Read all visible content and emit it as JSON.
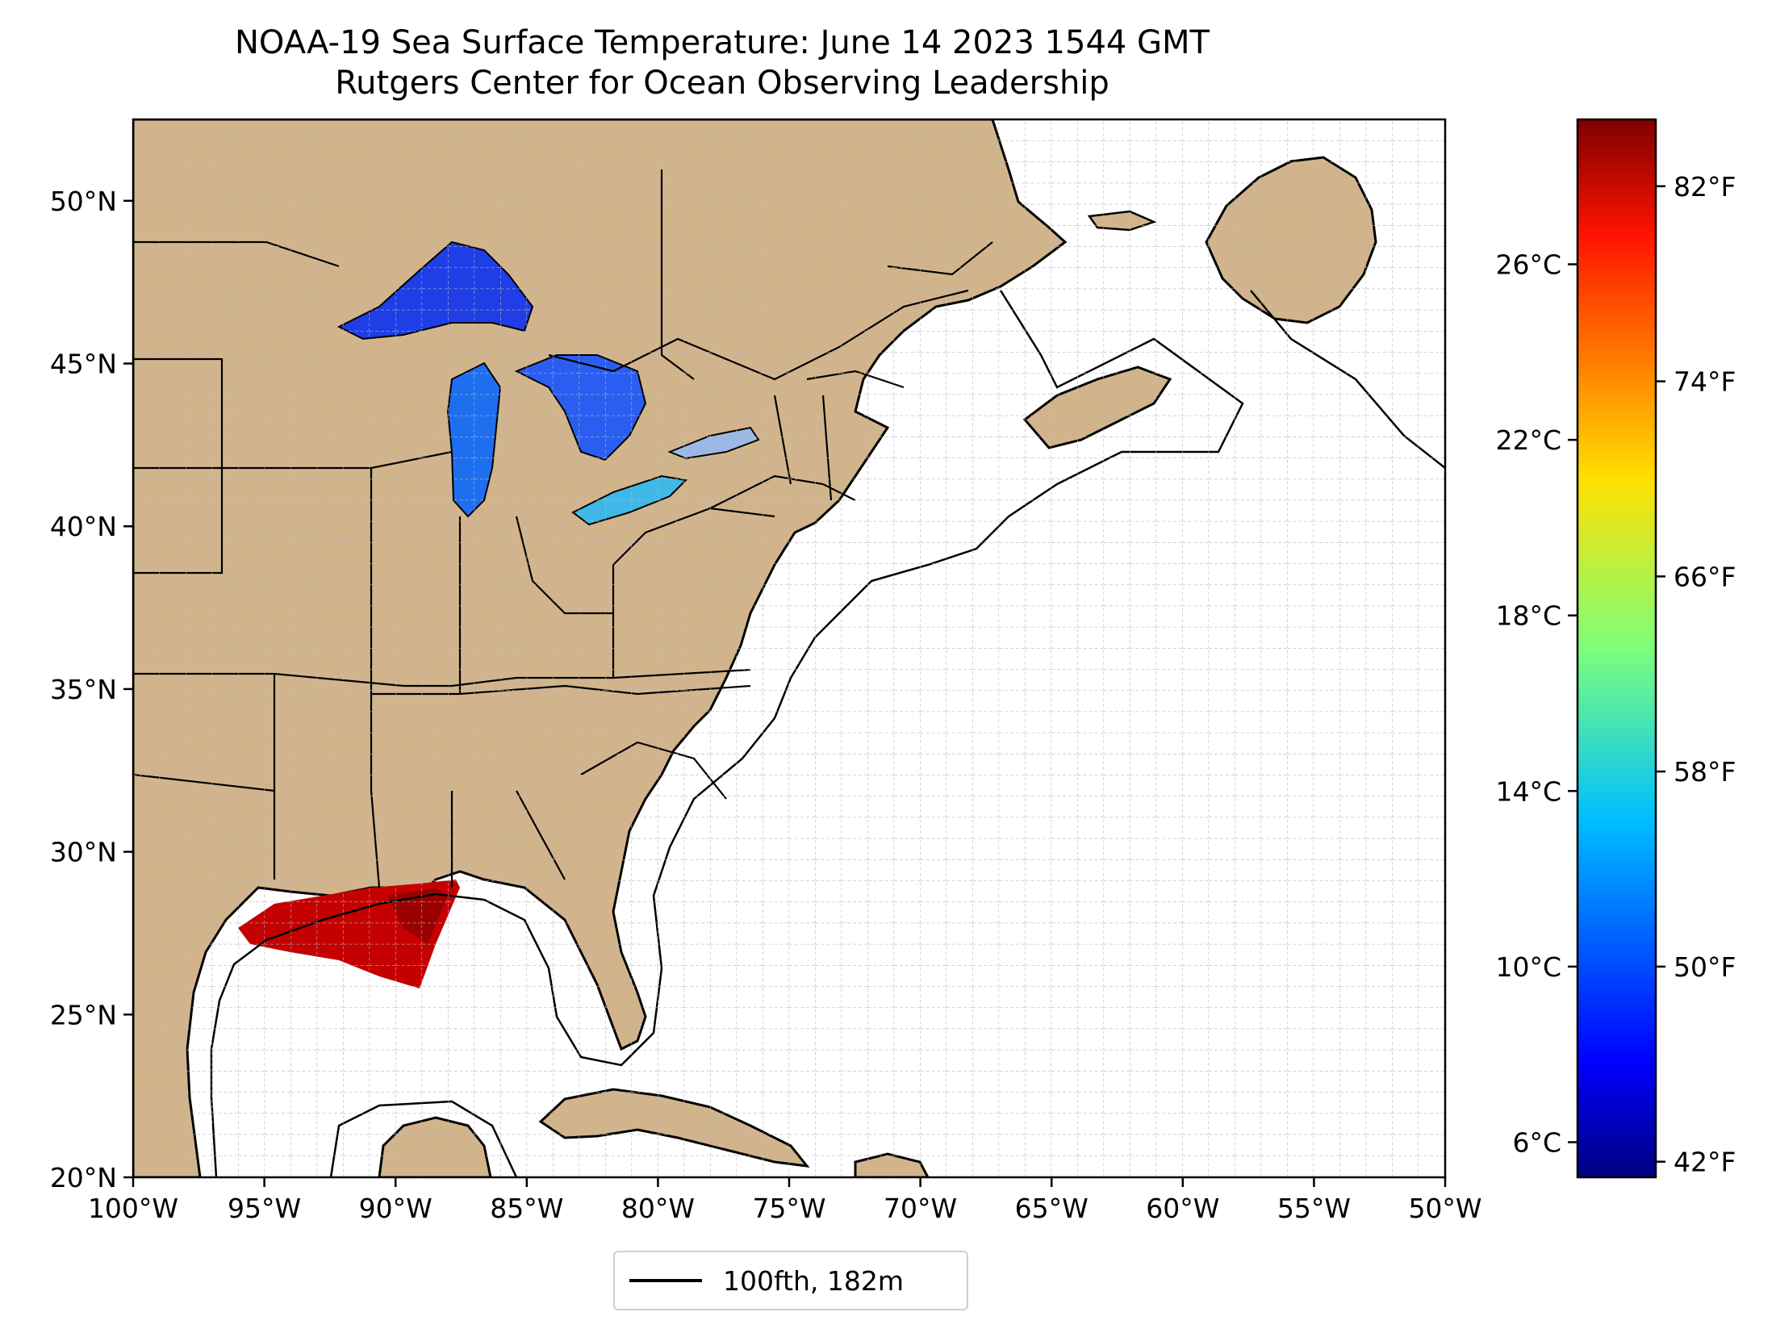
{
  "title": "NOAA-19 Sea Surface Temperature: June 14 2023 1544 GMT",
  "subtitle": "Rutgers Center for Ocean Observing Leadership",
  "map": {
    "lon_range": [
      -100,
      -50
    ],
    "lat_range": [
      20,
      52.5
    ],
    "lat_ticks": [
      "50°N",
      "45°N",
      "40°N",
      "35°N",
      "30°N",
      "25°N",
      "20°N"
    ],
    "lon_ticks": [
      "100°W",
      "95°W",
      "90°W",
      "85°W",
      "80°W",
      "75°W",
      "70°W",
      "65°W",
      "60°W",
      "55°W",
      "50°W"
    ],
    "land_color": "#d2b48c",
    "lake_color": "#9ab9e6",
    "ocean_color": "#ffffff",
    "grid": true
  },
  "colorbar": {
    "colormap": "jet",
    "celsius_ticks": [
      "26°C",
      "22°C",
      "18°C",
      "14°C",
      "10°C",
      "6°C"
    ],
    "fahrenheit_ticks": [
      "82°F",
      "74°F",
      "66°F",
      "58°F",
      "50°F",
      "42°F"
    ]
  },
  "legend": {
    "label": "100fth, 182m"
  }
}
